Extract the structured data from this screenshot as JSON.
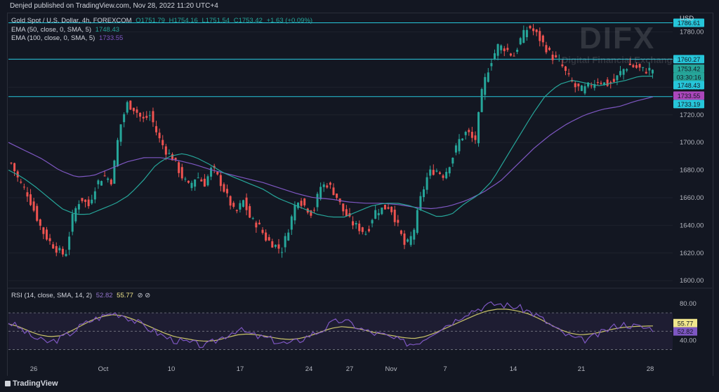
{
  "header": {
    "published": "Denjed published on TradingView.com, Nov 28, 2022 11:20 UTC+4"
  },
  "legend": {
    "symbol": "Gold Spot / U.S. Dollar, 4h, FOREXCOM",
    "ohlc": {
      "o": "O1751.79",
      "h": "H1754.16",
      "l": "L1751.54",
      "c": "C1753.42",
      "chg": "+1.63 (+0.09%)"
    },
    "ema50": {
      "label": "EMA (50, close, 0, SMA, 5)",
      "value": "1748.43"
    },
    "ema100": {
      "label": "EMA (100, close, 0, SMA, 5)",
      "value": "1733.55"
    },
    "rsi": {
      "label": "RSI (14, close, SMA, 14, 2)",
      "v1": "52.82",
      "v2": "55.77",
      "icons": "⊘ ⊘"
    }
  },
  "currency": "USD",
  "watermark": {
    "logo": "DIFX",
    "tagline": "Digital Financial Exchange"
  },
  "footer": {
    "brand": "TradingView"
  },
  "colors": {
    "up": "#26a69a",
    "down": "#ef5350",
    "ema50": "#26a69a",
    "ema100": "#7e57c2",
    "rsi": "#7e57c2",
    "rsiMa": "#c9c36a",
    "level": "#26c6da"
  },
  "chart_data": {
    "type": "candlestick",
    "price_ylim": [
      1595,
      1795
    ],
    "price_ticks": [
      "1600.00",
      "1620.00",
      "1640.00",
      "1660.00",
      "1680.00",
      "1700.00",
      "1720.00",
      "1740.00",
      "1760.00",
      "1780.00"
    ],
    "x_ticks": [
      "26",
      "Oct",
      "10",
      "17",
      "24",
      "27",
      "Nov",
      "7",
      "14",
      "21",
      "28"
    ],
    "horizontal_levels": [
      1786.61,
      1760.27,
      1733.19
    ],
    "price_labels": [
      {
        "text": "1786.61",
        "price": 1786.61,
        "kind": "level"
      },
      {
        "text": "1760.27",
        "price": 1760.27,
        "kind": "level"
      },
      {
        "text": "1753.42",
        "price": 1753.42,
        "kind": "last"
      },
      {
        "text": "03:30:16",
        "price": 1747.4,
        "kind": "last"
      },
      {
        "text": "1748.43",
        "price": 1741.5,
        "kind": "ema50"
      },
      {
        "text": "1733.55",
        "price": 1733.9,
        "kind": "ema100"
      },
      {
        "text": "1733.19",
        "price": 1727.8,
        "kind": "level"
      }
    ],
    "closes_key": [
      1685,
      1672,
      1664,
      1650,
      1636,
      1628,
      1622,
      1618,
      1648,
      1660,
      1654,
      1670,
      1676,
      1672,
      1710,
      1728,
      1724,
      1716,
      1720,
      1704,
      1694,
      1688,
      1676,
      1668,
      1676,
      1670,
      1682,
      1672,
      1660,
      1648,
      1658,
      1644,
      1640,
      1630,
      1626,
      1622,
      1640,
      1660,
      1654,
      1648,
      1668,
      1670,
      1662,
      1650,
      1642,
      1638,
      1634,
      1650,
      1652,
      1654,
      1640,
      1624,
      1634,
      1660,
      1678,
      1680,
      1676,
      1688,
      1702,
      1708,
      1700,
      1740,
      1758,
      1770,
      1768,
      1762,
      1776,
      1784,
      1778,
      1770,
      1762,
      1758,
      1748,
      1740,
      1738,
      1742,
      1745,
      1742,
      1744,
      1752,
      1756,
      1754,
      1752,
      1753
    ],
    "ema50_key": [
      1680,
      1675,
      1668,
      1660,
      1652,
      1648,
      1648,
      1652,
      1656,
      1662,
      1672,
      1684,
      1690,
      1692,
      1689,
      1684,
      1678,
      1674,
      1670,
      1666,
      1660,
      1656,
      1652,
      1648,
      1646,
      1646,
      1650,
      1654,
      1656,
      1656,
      1654,
      1650,
      1646,
      1648,
      1656,
      1662,
      1672,
      1688,
      1704,
      1720,
      1734,
      1742,
      1745,
      1743,
      1741,
      1743,
      1745,
      1748,
      1748
    ],
    "ema100_key": [
      1700,
      1694,
      1688,
      1680,
      1675,
      1676,
      1681,
      1686,
      1689,
      1689,
      1687,
      1684,
      1680,
      1677,
      1674,
      1671,
      1667,
      1663,
      1660,
      1659,
      1657,
      1656,
      1656,
      1655,
      1653,
      1652,
      1654,
      1658,
      1664,
      1672,
      1684,
      1696,
      1706,
      1714,
      1720,
      1724,
      1726,
      1730,
      1733
    ],
    "rsi_ylim": [
      25,
      90
    ],
    "rsi_ticks": [
      "80.00",
      "40.00"
    ],
    "rsi_levels": [
      70,
      50,
      30
    ],
    "rsi_key": [
      60,
      54,
      46,
      40,
      38,
      42,
      48,
      56,
      62,
      66,
      70,
      68,
      62,
      56,
      50,
      44,
      40,
      38,
      36,
      34,
      40,
      46,
      52,
      48,
      44,
      42,
      38,
      36,
      40,
      46,
      50,
      58,
      62,
      58,
      52,
      48,
      46,
      42,
      38,
      36,
      42,
      50,
      56,
      62,
      70,
      74,
      78,
      80,
      78,
      76,
      72,
      66,
      58,
      50,
      44,
      40,
      42,
      48,
      54,
      58,
      56,
      54,
      53
    ],
    "rsi_ma_key": [
      58,
      55,
      50,
      46,
      44,
      45,
      50,
      56,
      62,
      66,
      68,
      67,
      63,
      58,
      53,
      48,
      44,
      42,
      40,
      39,
      40,
      43,
      46,
      47,
      46,
      44,
      42,
      41,
      42,
      45,
      49,
      53,
      55,
      54,
      52,
      49,
      47,
      45,
      43,
      42,
      44,
      48,
      53,
      58,
      63,
      68,
      72,
      74,
      74,
      72,
      69,
      64,
      58,
      52,
      48,
      46,
      47,
      49,
      52,
      54,
      55,
      55.5,
      55.77
    ],
    "rsi_labels": [
      {
        "text": "55.77",
        "value": 55.77,
        "color": "#f0e68c"
      },
      {
        "text": "52.82",
        "value": 52.82,
        "color": "#7e57c2"
      }
    ]
  }
}
